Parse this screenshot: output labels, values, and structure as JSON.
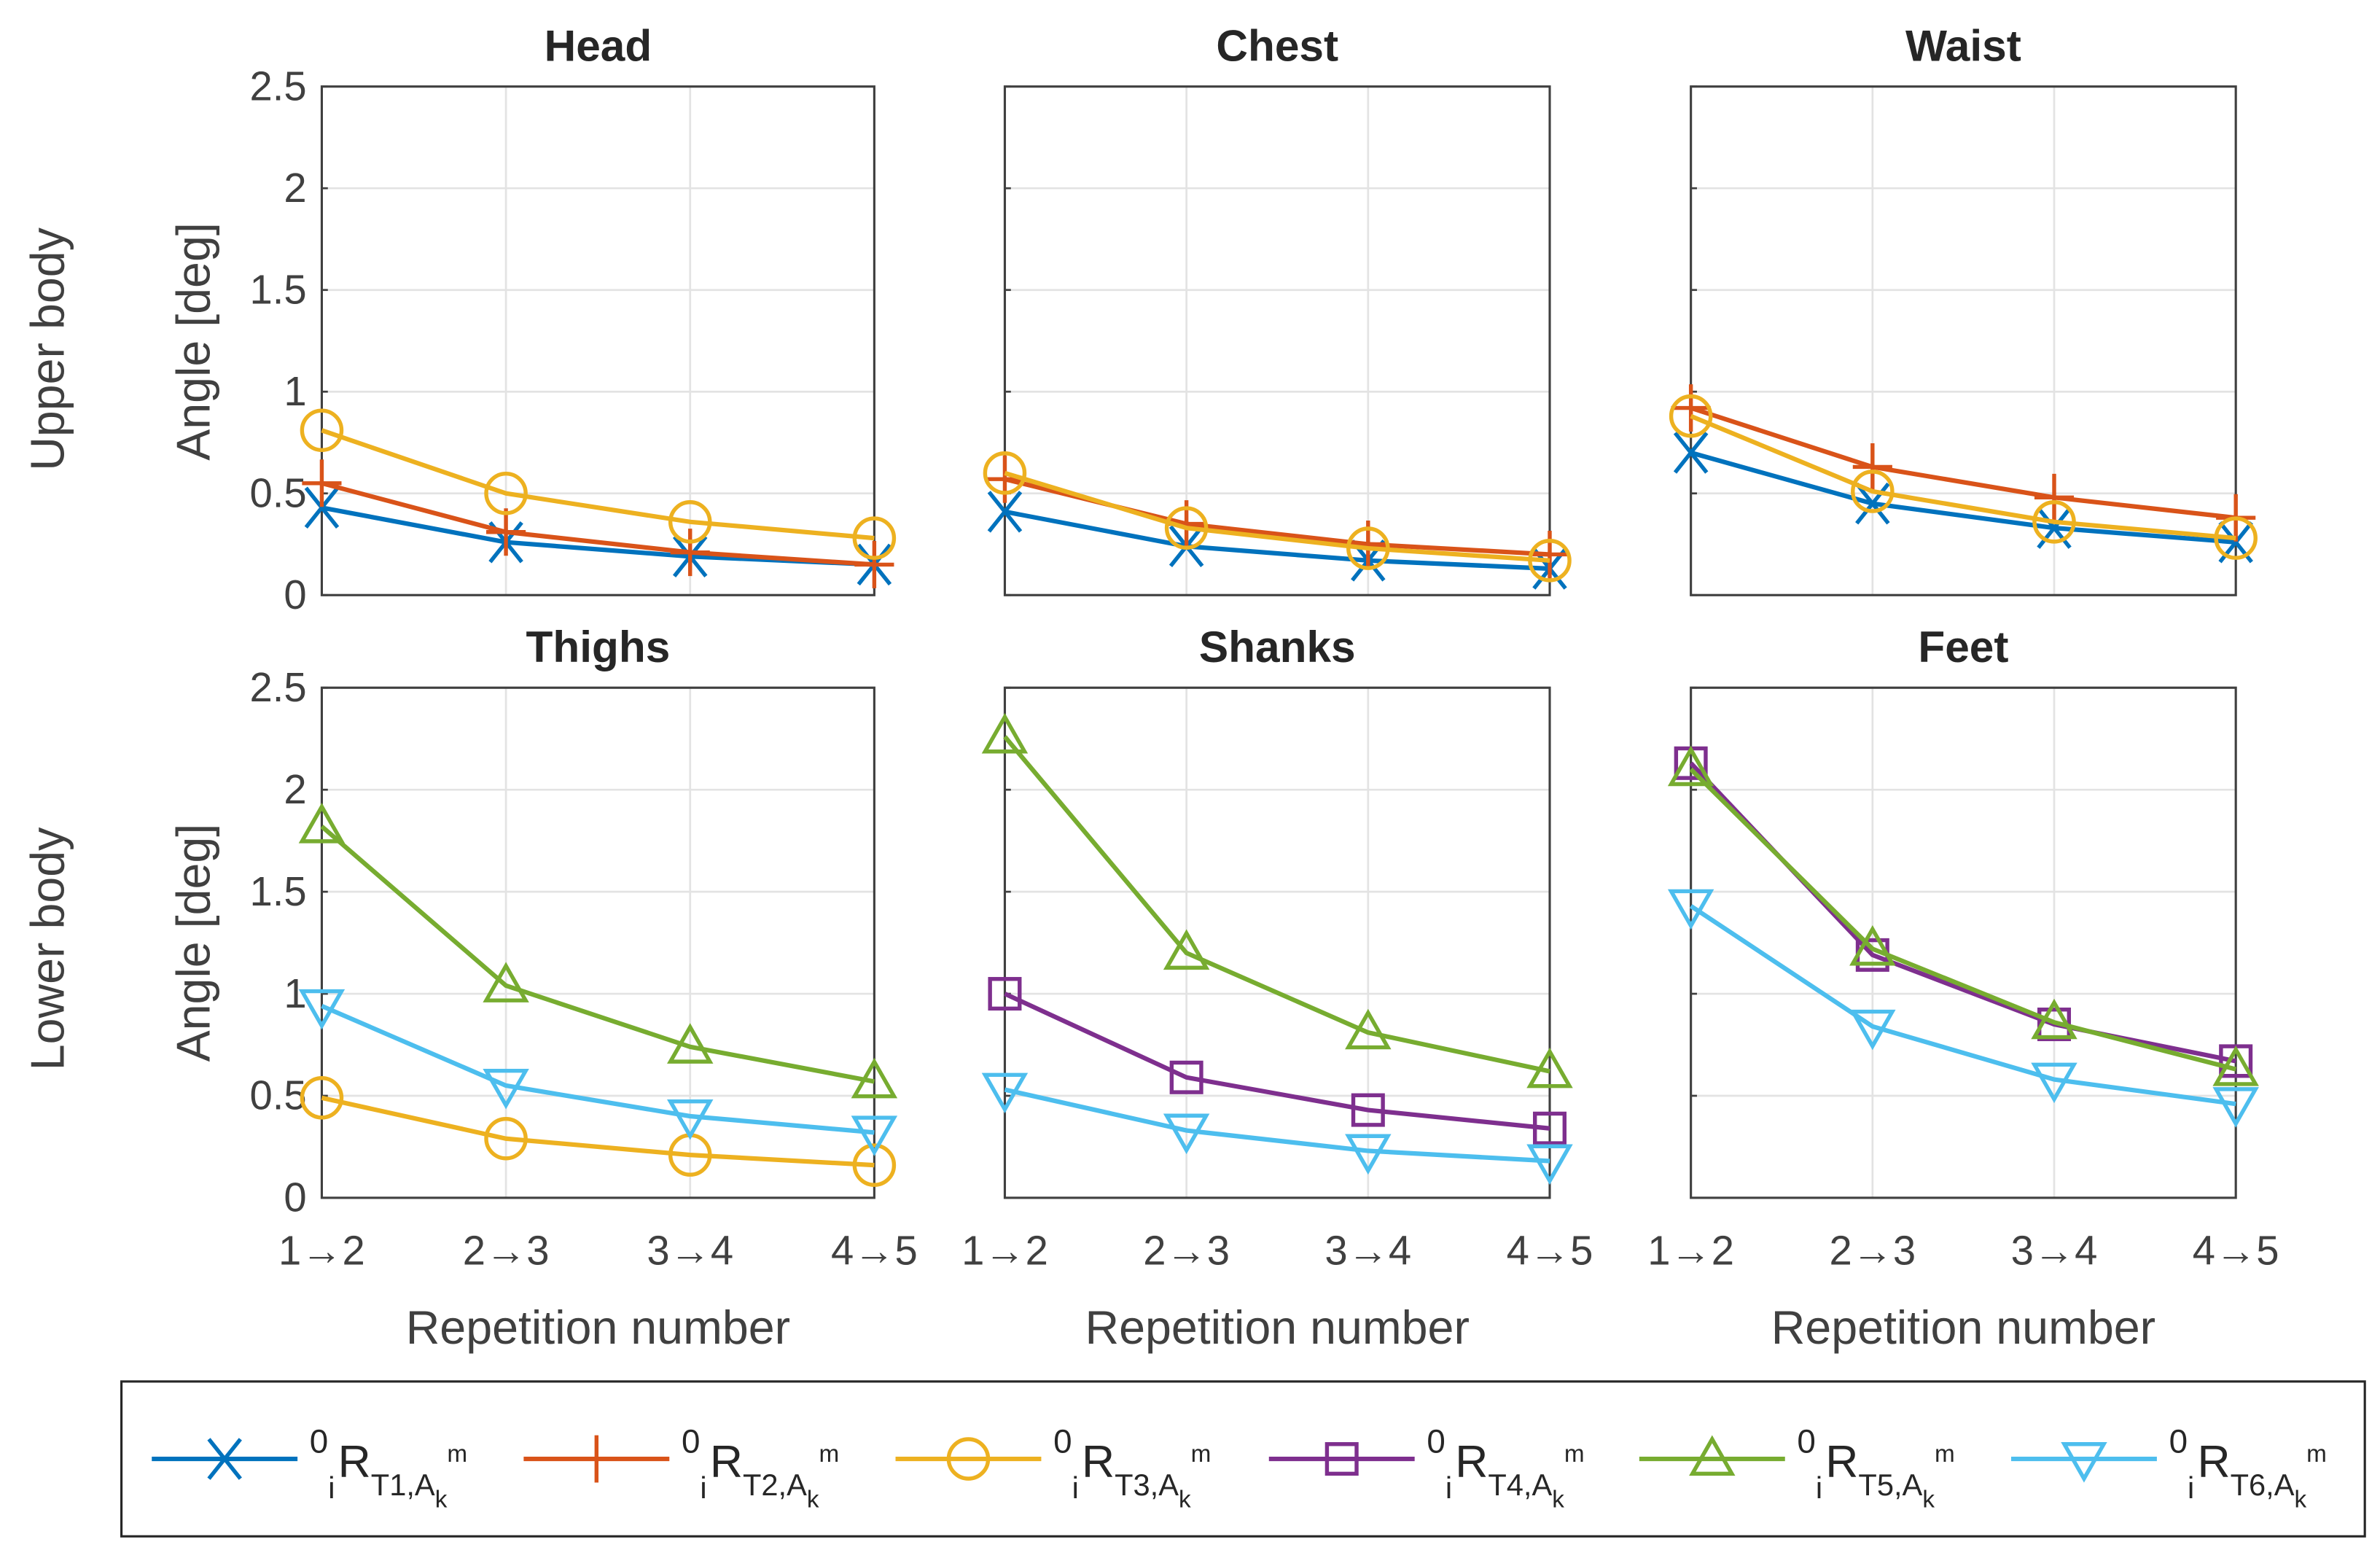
{
  "chart_data": {
    "type": "line",
    "x": [
      "1→2",
      "2→3",
      "3→4",
      "4→5"
    ],
    "xlabel": "Repetition number",
    "ylabel": "Angle [deg]",
    "ylim": [
      0,
      2.5
    ],
    "yticks": [
      "0",
      "0.5",
      "1",
      "1.5",
      "2",
      "2.5"
    ],
    "grid": true,
    "legend_placement": "bottom",
    "row_labels": [
      "Upper body",
      "Lower body"
    ],
    "series_styles": [
      {
        "id": "T1",
        "color": "#0072BD",
        "marker": "x"
      },
      {
        "id": "T2",
        "color": "#D95319",
        "marker": "plus"
      },
      {
        "id": "T3",
        "color": "#EDB120",
        "marker": "circle"
      },
      {
        "id": "T4",
        "color": "#7E2F8E",
        "marker": "square"
      },
      {
        "id": "T5",
        "color": "#77AC30",
        "marker": "triangle-up"
      },
      {
        "id": "T6",
        "color": "#4DBEEE",
        "marker": "triangle-down"
      }
    ],
    "legend": [
      {
        "pre_sup": "0",
        "pre_sub": "i",
        "main": "R",
        "sub": "T1,A",
        "subsub": "k",
        "sup": "m"
      },
      {
        "pre_sup": "0",
        "pre_sub": "i",
        "main": "R",
        "sub": "T2,A",
        "subsub": "k",
        "sup": "m"
      },
      {
        "pre_sup": "0",
        "pre_sub": "i",
        "main": "R",
        "sub": "T3,A",
        "subsub": "k",
        "sup": "m"
      },
      {
        "pre_sup": "0",
        "pre_sub": "i",
        "main": "R",
        "sub": "T4,A",
        "subsub": "k",
        "sup": "m"
      },
      {
        "pre_sup": "0",
        "pre_sub": "i",
        "main": "R",
        "sub": "T5,A",
        "subsub": "k",
        "sup": "m"
      },
      {
        "pre_sup": "0",
        "pre_sub": "i",
        "main": "R",
        "sub": "T6,A",
        "subsub": "k",
        "sup": "m"
      }
    ],
    "panels": [
      {
        "title": "Head",
        "row": 0,
        "series": [
          {
            "id": "T1",
            "values": [
              0.43,
              0.26,
              0.19,
              0.15
            ]
          },
          {
            "id": "T2",
            "values": [
              0.55,
              0.31,
              0.21,
              0.15
            ]
          },
          {
            "id": "T3",
            "values": [
              0.81,
              0.5,
              0.36,
              0.28
            ]
          }
        ]
      },
      {
        "title": "Chest",
        "row": 0,
        "series": [
          {
            "id": "T1",
            "values": [
              0.41,
              0.24,
              0.17,
              0.13
            ]
          },
          {
            "id": "T2",
            "values": [
              0.57,
              0.35,
              0.25,
              0.2
            ]
          },
          {
            "id": "T3",
            "values": [
              0.6,
              0.33,
              0.23,
              0.17
            ]
          }
        ]
      },
      {
        "title": "Waist",
        "row": 0,
        "series": [
          {
            "id": "T1",
            "values": [
              0.7,
              0.45,
              0.33,
              0.26
            ]
          },
          {
            "id": "T2",
            "values": [
              0.92,
              0.63,
              0.48,
              0.38
            ]
          },
          {
            "id": "T3",
            "values": [
              0.88,
              0.51,
              0.36,
              0.28
            ]
          }
        ]
      },
      {
        "title": "Thighs",
        "row": 1,
        "series": [
          {
            "id": "T3",
            "values": [
              0.49,
              0.29,
              0.21,
              0.16
            ]
          },
          {
            "id": "T5",
            "values": [
              1.82,
              1.04,
              0.74,
              0.57
            ]
          },
          {
            "id": "T6",
            "values": [
              0.94,
              0.55,
              0.4,
              0.32
            ]
          }
        ]
      },
      {
        "title": "Shanks",
        "row": 1,
        "series": [
          {
            "id": "T4",
            "values": [
              1.0,
              0.59,
              0.43,
              0.34
            ]
          },
          {
            "id": "T5",
            "values": [
              2.26,
              1.2,
              0.81,
              0.62
            ]
          },
          {
            "id": "T6",
            "values": [
              0.53,
              0.33,
              0.23,
              0.18
            ]
          }
        ]
      },
      {
        "title": "Feet",
        "row": 1,
        "series": [
          {
            "id": "T4",
            "values": [
              2.13,
              1.19,
              0.85,
              0.67
            ]
          },
          {
            "id": "T5",
            "values": [
              2.1,
              1.22,
              0.86,
              0.63
            ]
          },
          {
            "id": "T6",
            "values": [
              1.43,
              0.84,
              0.58,
              0.46
            ]
          }
        ]
      }
    ]
  }
}
